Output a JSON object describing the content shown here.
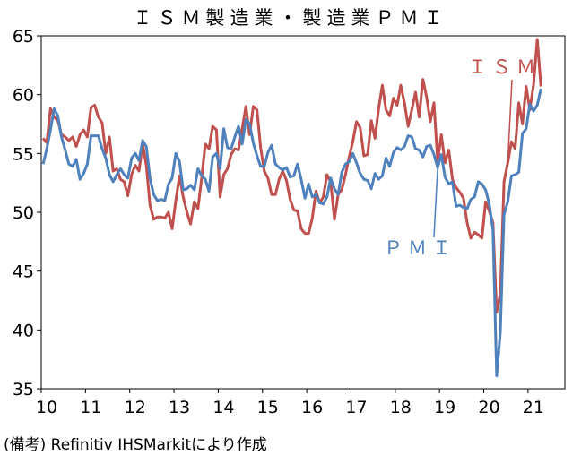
{
  "chart_data": {
    "type": "line",
    "title": "ＩＳＭ製造業・製造業ＰＭＩ",
    "source": "(備考) Refinitiv IHSMarkitにより作成",
    "xlabel": "",
    "ylabel": "",
    "ylim": [
      35,
      65
    ],
    "y_ticks": [
      35,
      40,
      45,
      50,
      55,
      60,
      65
    ],
    "x_tick_labels": [
      "10",
      "11",
      "12",
      "13",
      "14",
      "15",
      "16",
      "17",
      "18",
      "19",
      "20",
      "21"
    ],
    "x_start": "2010-01",
    "grid": false,
    "colors": {
      "ism": "#c0504d",
      "pmi": "#4f81bd"
    },
    "series": [
      {
        "name": "ＩＳＭ",
        "color": "#c0504d",
        "values": [
          56.3,
          55.9,
          58.8,
          58.1,
          57.8,
          56.6,
          56.4,
          56.1,
          56.4,
          55.6,
          56.6,
          57.0,
          56.4,
          58.9,
          59.1,
          58.1,
          57.6,
          55.0,
          56.4,
          53.5,
          53.7,
          52.8,
          52.6,
          51.4,
          53.2,
          54.0,
          53.5,
          55.8,
          54.0,
          50.6,
          49.4,
          49.6,
          49.6,
          49.5,
          50.0,
          48.6,
          51.0,
          53.1,
          51.3,
          50.0,
          49.0,
          50.9,
          50.3,
          52.9,
          55.8,
          55.4,
          57.3,
          57.0,
          51.3,
          53.2,
          53.7,
          54.9,
          55.4,
          55.3,
          57.1,
          59.0,
          56.6,
          59.0,
          58.7,
          55.5,
          53.5,
          52.9,
          51.5,
          51.5,
          52.8,
          53.5,
          52.7,
          51.1,
          50.2,
          50.1,
          48.6,
          48.2,
          48.2,
          49.5,
          51.8,
          50.8,
          51.3,
          53.2,
          52.6,
          49.4,
          51.5,
          51.9,
          53.2,
          54.7,
          56.0,
          57.7,
          57.2,
          54.8,
          54.9,
          57.8,
          56.3,
          58.8,
          60.8,
          58.7,
          58.2,
          59.7,
          59.1,
          60.8,
          59.3,
          57.3,
          58.7,
          60.2,
          58.1,
          61.3,
          59.8,
          57.7,
          59.3,
          54.3,
          56.6,
          54.2,
          55.3,
          52.8,
          52.1,
          51.7,
          51.2,
          49.1,
          47.8,
          48.3,
          48.1,
          47.8,
          50.9,
          50.1,
          49.1,
          41.5,
          43.1,
          52.6,
          54.2,
          56.0,
          55.4,
          59.3,
          57.5,
          60.7,
          58.7,
          60.8,
          64.7,
          60.7
        ]
      },
      {
        "name": "ＰＭＩ",
        "color": "#4f81bd",
        "values": [
          54.1,
          55.4,
          57.0,
          58.8,
          58.2,
          56.4,
          55.3,
          54.1,
          53.9,
          54.5,
          52.8,
          53.3,
          54.1,
          56.5,
          56.5,
          56.5,
          55.4,
          54.6,
          53.2,
          52.6,
          53.2,
          53.7,
          53.2,
          52.9,
          54.6,
          55.0,
          54.4,
          56.1,
          55.6,
          52.9,
          51.5,
          51.0,
          51.1,
          51.0,
          52.4,
          52.9,
          55.0,
          54.3,
          51.9,
          52.0,
          52.3,
          51.9,
          53.7,
          53.1,
          52.8,
          51.8,
          54.7,
          55.0,
          53.7,
          57.1,
          55.5,
          55.4,
          56.4,
          57.3,
          55.8,
          57.9,
          57.5,
          55.9,
          54.8,
          53.9,
          53.9,
          55.1,
          55.7,
          54.1,
          53.8,
          53.6,
          53.8,
          53.0,
          53.1,
          54.1,
          52.8,
          51.2,
          52.4,
          51.3,
          51.5,
          50.8,
          50.7,
          51.3,
          52.9,
          52.0,
          51.5,
          53.4,
          54.1,
          54.3,
          55.0,
          54.2,
          53.3,
          52.8,
          52.7,
          52.0,
          53.3,
          52.8,
          53.1,
          54.6,
          53.9,
          55.1,
          55.5,
          55.3,
          55.6,
          56.5,
          56.4,
          55.4,
          55.3,
          54.7,
          55.6,
          55.7,
          54.9,
          53.8,
          54.9,
          53.0,
          52.4,
          52.6,
          50.5,
          50.6,
          50.4,
          50.3,
          51.1,
          51.3,
          52.6,
          52.4,
          51.9,
          50.7,
          48.5,
          36.1,
          39.8,
          49.8,
          50.9,
          53.1,
          53.2,
          53.4,
          56.7,
          57.1,
          59.2,
          58.6,
          59.1,
          60.5
        ]
      }
    ]
  }
}
